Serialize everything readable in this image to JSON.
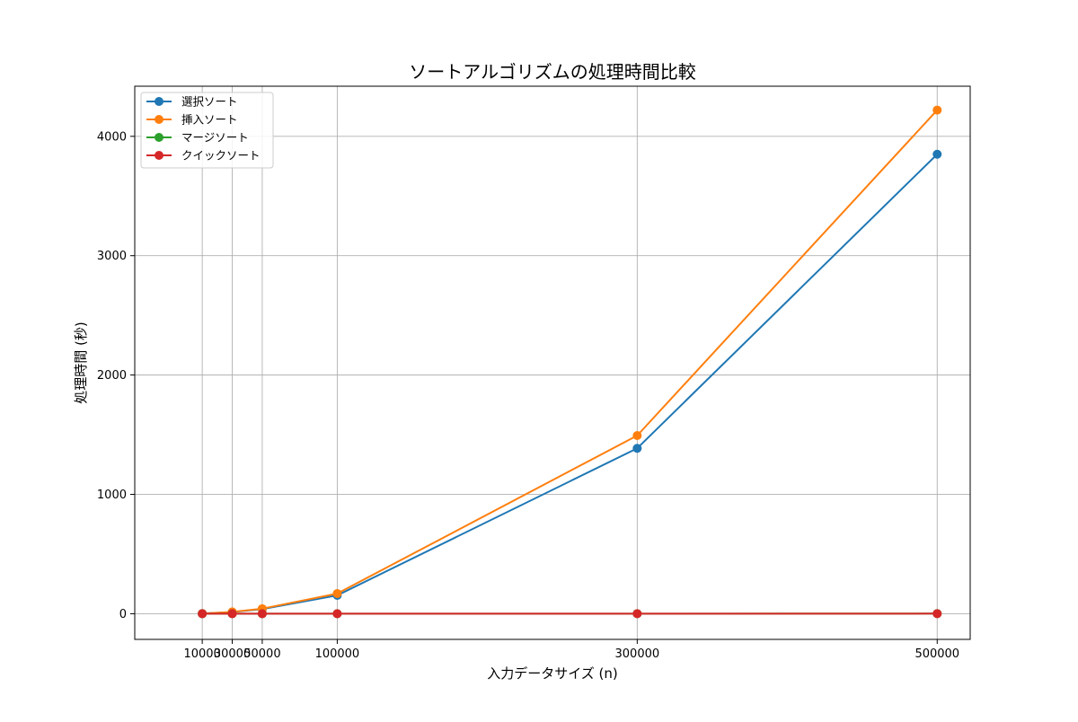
{
  "chart_data": {
    "type": "line",
    "title": "ソートアルゴリズムの処理時間比較",
    "xlabel": "入力データサイズ (n)",
    "ylabel": "処理時間 (秒)",
    "x": [
      10000,
      30000,
      50000,
      100000,
      300000,
      500000
    ],
    "x_tick_labels": [
      "10000",
      "30000",
      "50000",
      "100000",
      "300000",
      "500000"
    ],
    "y_ticks": [
      0,
      1000,
      2000,
      3000,
      4000
    ],
    "y_tick_labels": [
      "0",
      "1000",
      "2000",
      "3000",
      "4000"
    ],
    "xlim": [
      -35000,
      522000
    ],
    "ylim": [
      -215,
      4420
    ],
    "grid": true,
    "legend_position": "upper-left",
    "series": [
      {
        "name": "選択ソート",
        "color": "#1f77b4",
        "values": [
          1.5,
          13.9,
          38.5,
          154,
          1386,
          3850
        ]
      },
      {
        "name": "挿入ソート",
        "color": "#ff7f0e",
        "values": [
          1.7,
          15.2,
          42.2,
          169,
          1493,
          4220
        ]
      },
      {
        "name": "マージソート",
        "color": "#2ca02c",
        "values": [
          0.02,
          0.06,
          0.1,
          0.2,
          0.65,
          1.1
        ]
      },
      {
        "name": "クイックソート",
        "color": "#d62728",
        "values": [
          0.01,
          0.04,
          0.07,
          0.15,
          0.5,
          0.85
        ]
      }
    ]
  }
}
